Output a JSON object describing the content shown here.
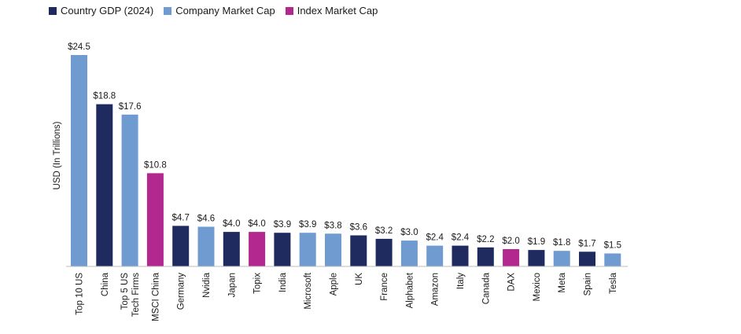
{
  "chart_data": {
    "type": "bar",
    "title": "",
    "xlabel": "",
    "ylabel": "USD (In Trillions)",
    "ylim": [
      0,
      25
    ],
    "value_prefix": "$",
    "legend": [
      {
        "key": "country",
        "label": "Country GDP (2024)",
        "color": "#1f2a5e"
      },
      {
        "key": "company",
        "label": "Company Market Cap",
        "color": "#6f9bd1"
      },
      {
        "key": "index",
        "label": "Index Market Cap",
        "color": "#b3288f"
      }
    ],
    "categories": [
      {
        "lines": [
          "Top 10 US"
        ],
        "value": 24.5,
        "group": "company"
      },
      {
        "lines": [
          "China"
        ],
        "value": 18.8,
        "group": "country"
      },
      {
        "lines": [
          "Top 5 US",
          "Tech Firms"
        ],
        "value": 17.6,
        "group": "company"
      },
      {
        "lines": [
          "MSCI China"
        ],
        "value": 10.8,
        "group": "index"
      },
      {
        "lines": [
          "Germany"
        ],
        "value": 4.7,
        "group": "country"
      },
      {
        "lines": [
          "Nvidia"
        ],
        "value": 4.6,
        "group": "company"
      },
      {
        "lines": [
          "Japan"
        ],
        "value": 4.0,
        "group": "country"
      },
      {
        "lines": [
          "Topix"
        ],
        "value": 4.0,
        "group": "index"
      },
      {
        "lines": [
          "India"
        ],
        "value": 3.9,
        "group": "country"
      },
      {
        "lines": [
          "Microsoft"
        ],
        "value": 3.9,
        "group": "company"
      },
      {
        "lines": [
          "Apple"
        ],
        "value": 3.8,
        "group": "company"
      },
      {
        "lines": [
          "UK"
        ],
        "value": 3.6,
        "group": "country"
      },
      {
        "lines": [
          "France"
        ],
        "value": 3.2,
        "group": "country"
      },
      {
        "lines": [
          "Alphabet"
        ],
        "value": 3.0,
        "group": "company"
      },
      {
        "lines": [
          "Amazon"
        ],
        "value": 2.4,
        "group": "company"
      },
      {
        "lines": [
          "Italy"
        ],
        "value": 2.4,
        "group": "country"
      },
      {
        "lines": [
          "Canada"
        ],
        "value": 2.2,
        "group": "country"
      },
      {
        "lines": [
          "DAX"
        ],
        "value": 2.0,
        "group": "index"
      },
      {
        "lines": [
          "Mexico"
        ],
        "value": 1.9,
        "group": "country"
      },
      {
        "lines": [
          "Meta"
        ],
        "value": 1.8,
        "group": "company"
      },
      {
        "lines": [
          "Spain"
        ],
        "value": 1.7,
        "group": "country"
      },
      {
        "lines": [
          "Tesla"
        ],
        "value": 1.5,
        "group": "company"
      }
    ]
  }
}
